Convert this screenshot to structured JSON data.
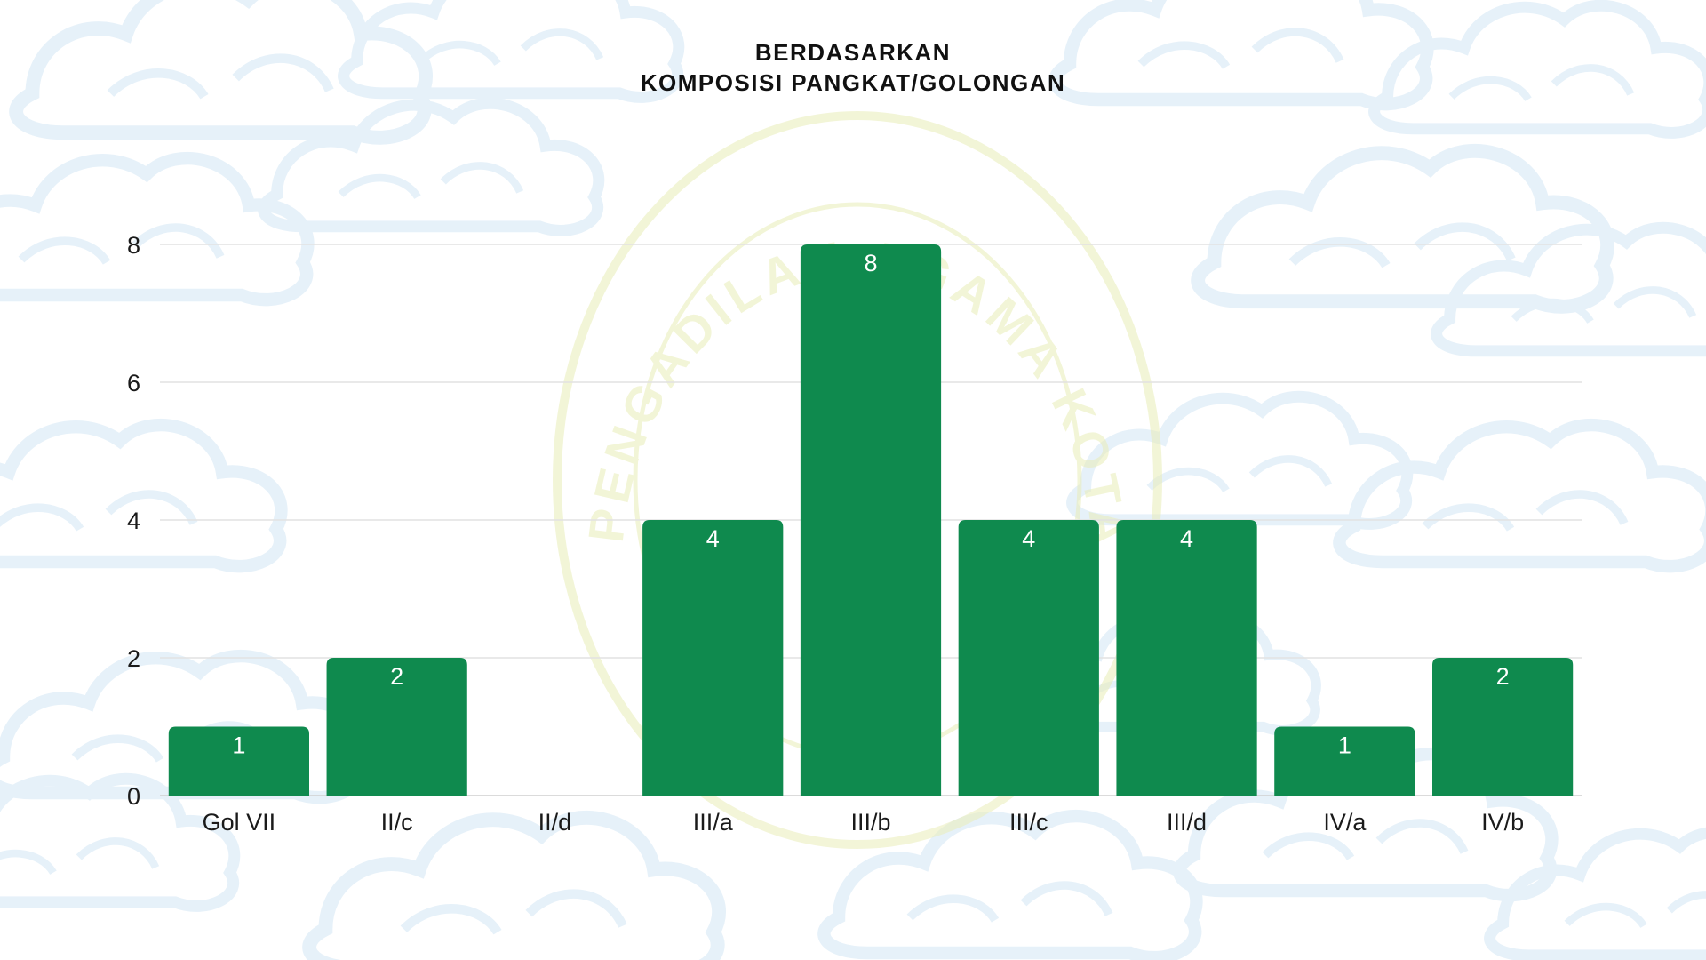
{
  "chart_data": {
    "type": "bar",
    "title_lines": [
      "BERDASARKAN",
      "KOMPOSISI PANGKAT/GOLONGAN"
    ],
    "categories": [
      "Gol VII",
      "II/c",
      "II/d",
      "III/a",
      "III/b",
      "III/c",
      "III/d",
      "IV/a",
      "IV/b"
    ],
    "values": [
      1,
      2,
      0,
      4,
      8,
      4,
      4,
      1,
      2
    ],
    "data_labels": [
      "1",
      "2",
      "",
      "4",
      "8",
      "4",
      "4",
      "1",
      "2"
    ],
    "xlabel": "",
    "ylabel": "",
    "ylim": [
      0,
      8
    ],
    "yticks": [
      0,
      2,
      4,
      6,
      8
    ],
    "grid": true,
    "legend": "none",
    "bar_color": "#0f8a4e",
    "grid_color": "#e2e2e2"
  },
  "watermark": {
    "text": "PENGADILAN AGAMA KOTA TASIKMALAYA",
    "color": "#e9edb8"
  },
  "background_pattern": {
    "name": "mega-mendung-cloud-pattern",
    "color": "#e6f1f9"
  }
}
